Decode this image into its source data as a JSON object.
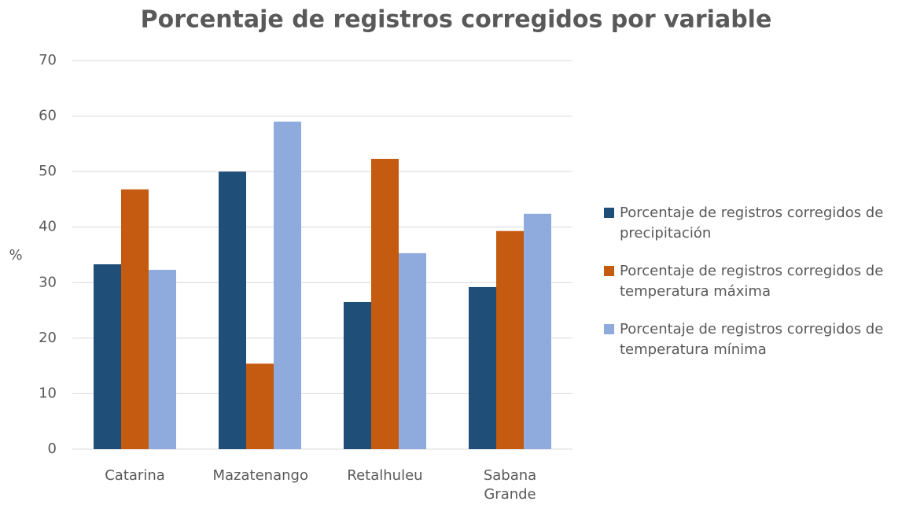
{
  "chart_data": {
    "type": "bar",
    "title": "Porcentaje de registros corregidos por variable",
    "ylabel": "%",
    "categories": [
      "Catarina",
      "Mazatenango",
      "Retalhuleu",
      "Sabana Grande"
    ],
    "series": [
      {
        "name": "Porcentaje de registros corregidos de precipitación",
        "color": "#1f4e79",
        "values": [
          33.3,
          50.0,
          26.5,
          29.2
        ]
      },
      {
        "name": "Porcentaje de registros corregidos de temperatura máxima",
        "color": "#c55a11",
        "values": [
          46.8,
          15.4,
          52.3,
          39.3
        ]
      },
      {
        "name": "Porcentaje de registros corregidos de temperatura mínima",
        "color": "#8faadc",
        "values": [
          32.3,
          59.0,
          35.3,
          42.4
        ]
      }
    ],
    "ylim": [
      0,
      70
    ],
    "yticks": [
      0,
      10,
      20,
      30,
      40,
      50,
      60,
      70
    ],
    "grid": true,
    "legend": "right"
  }
}
